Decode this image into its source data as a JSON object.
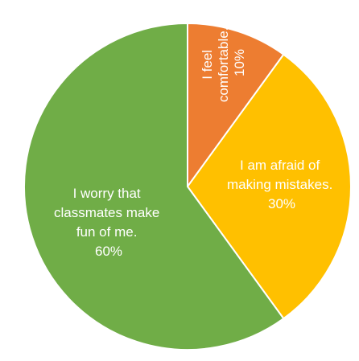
{
  "chart_data": {
    "type": "pie",
    "slices": [
      {
        "label_lines": [
          "I feel",
          "comfortable.",
          "10%"
        ],
        "value": 10,
        "color": "#ED7D31"
      },
      {
        "label_lines": [
          "I am afraid of",
          "making mistakes.",
          "30%"
        ],
        "value": 30,
        "color": "#FFC000"
      },
      {
        "label_lines": [
          "I worry that",
          "classmates make",
          "fun of me.",
          "60%"
        ],
        "value": 60,
        "color": "#70AD47"
      }
    ],
    "start_angle": "12 o'clock",
    "direction": "clockwise",
    "slice_border_color": "#ffffff",
    "legend": "none"
  }
}
